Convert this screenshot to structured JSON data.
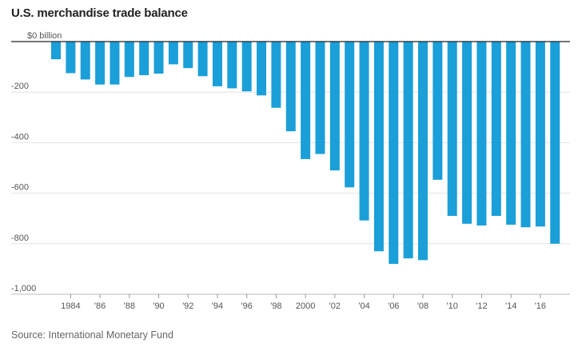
{
  "chart_data": {
    "type": "bar",
    "title": "U.S. merchandise trade balance",
    "ylabel": "",
    "xlabel": "",
    "ylim": [
      -1000,
      0
    ],
    "grid": true,
    "color": "#1a9fd9",
    "categories": [
      1983,
      1984,
      1985,
      1986,
      1987,
      1988,
      1989,
      1990,
      1991,
      1992,
      1993,
      1994,
      1995,
      1996,
      1997,
      1998,
      1999,
      2000,
      2001,
      2002,
      2003,
      2004,
      2005,
      2006,
      2007,
      2008,
      2009,
      2010,
      2011,
      2012,
      2013,
      2014,
      2015,
      2016,
      2017
    ],
    "values": [
      -70,
      -125,
      -150,
      -170,
      -170,
      -140,
      -133,
      -127,
      -90,
      -105,
      -137,
      -177,
      -185,
      -197,
      -213,
      -262,
      -355,
      -465,
      -445,
      -510,
      -577,
      -708,
      -830,
      -880,
      -858,
      -865,
      -547,
      -690,
      -721,
      -728,
      -690,
      -725,
      -735,
      -732,
      -800
    ],
    "yticks": [
      {
        "value": 0,
        "label": "$0 billion"
      },
      {
        "value": -200,
        "label": "-200"
      },
      {
        "value": -400,
        "label": "-400"
      },
      {
        "value": -600,
        "label": "-600"
      },
      {
        "value": -800,
        "label": "-800"
      },
      {
        "value": -1000,
        "label": "-1,000"
      }
    ],
    "xticks": [
      {
        "year": 1984,
        "label": "1984"
      },
      {
        "year": 1986,
        "label": "'86"
      },
      {
        "year": 1988,
        "label": "'88"
      },
      {
        "year": 1990,
        "label": "'90"
      },
      {
        "year": 1992,
        "label": "'92"
      },
      {
        "year": 1994,
        "label": "'94"
      },
      {
        "year": 1996,
        "label": "'96"
      },
      {
        "year": 1998,
        "label": "'98"
      },
      {
        "year": 2000,
        "label": "2000"
      },
      {
        "year": 2002,
        "label": "'02"
      },
      {
        "year": 2004,
        "label": "'04"
      },
      {
        "year": 2006,
        "label": "'06"
      },
      {
        "year": 2008,
        "label": "'08"
      },
      {
        "year": 2010,
        "label": "'10"
      },
      {
        "year": 2012,
        "label": "'12"
      },
      {
        "year": 2014,
        "label": "'14"
      },
      {
        "year": 2016,
        "label": "'16"
      }
    ]
  },
  "source": "Source: International Monetary Fund"
}
